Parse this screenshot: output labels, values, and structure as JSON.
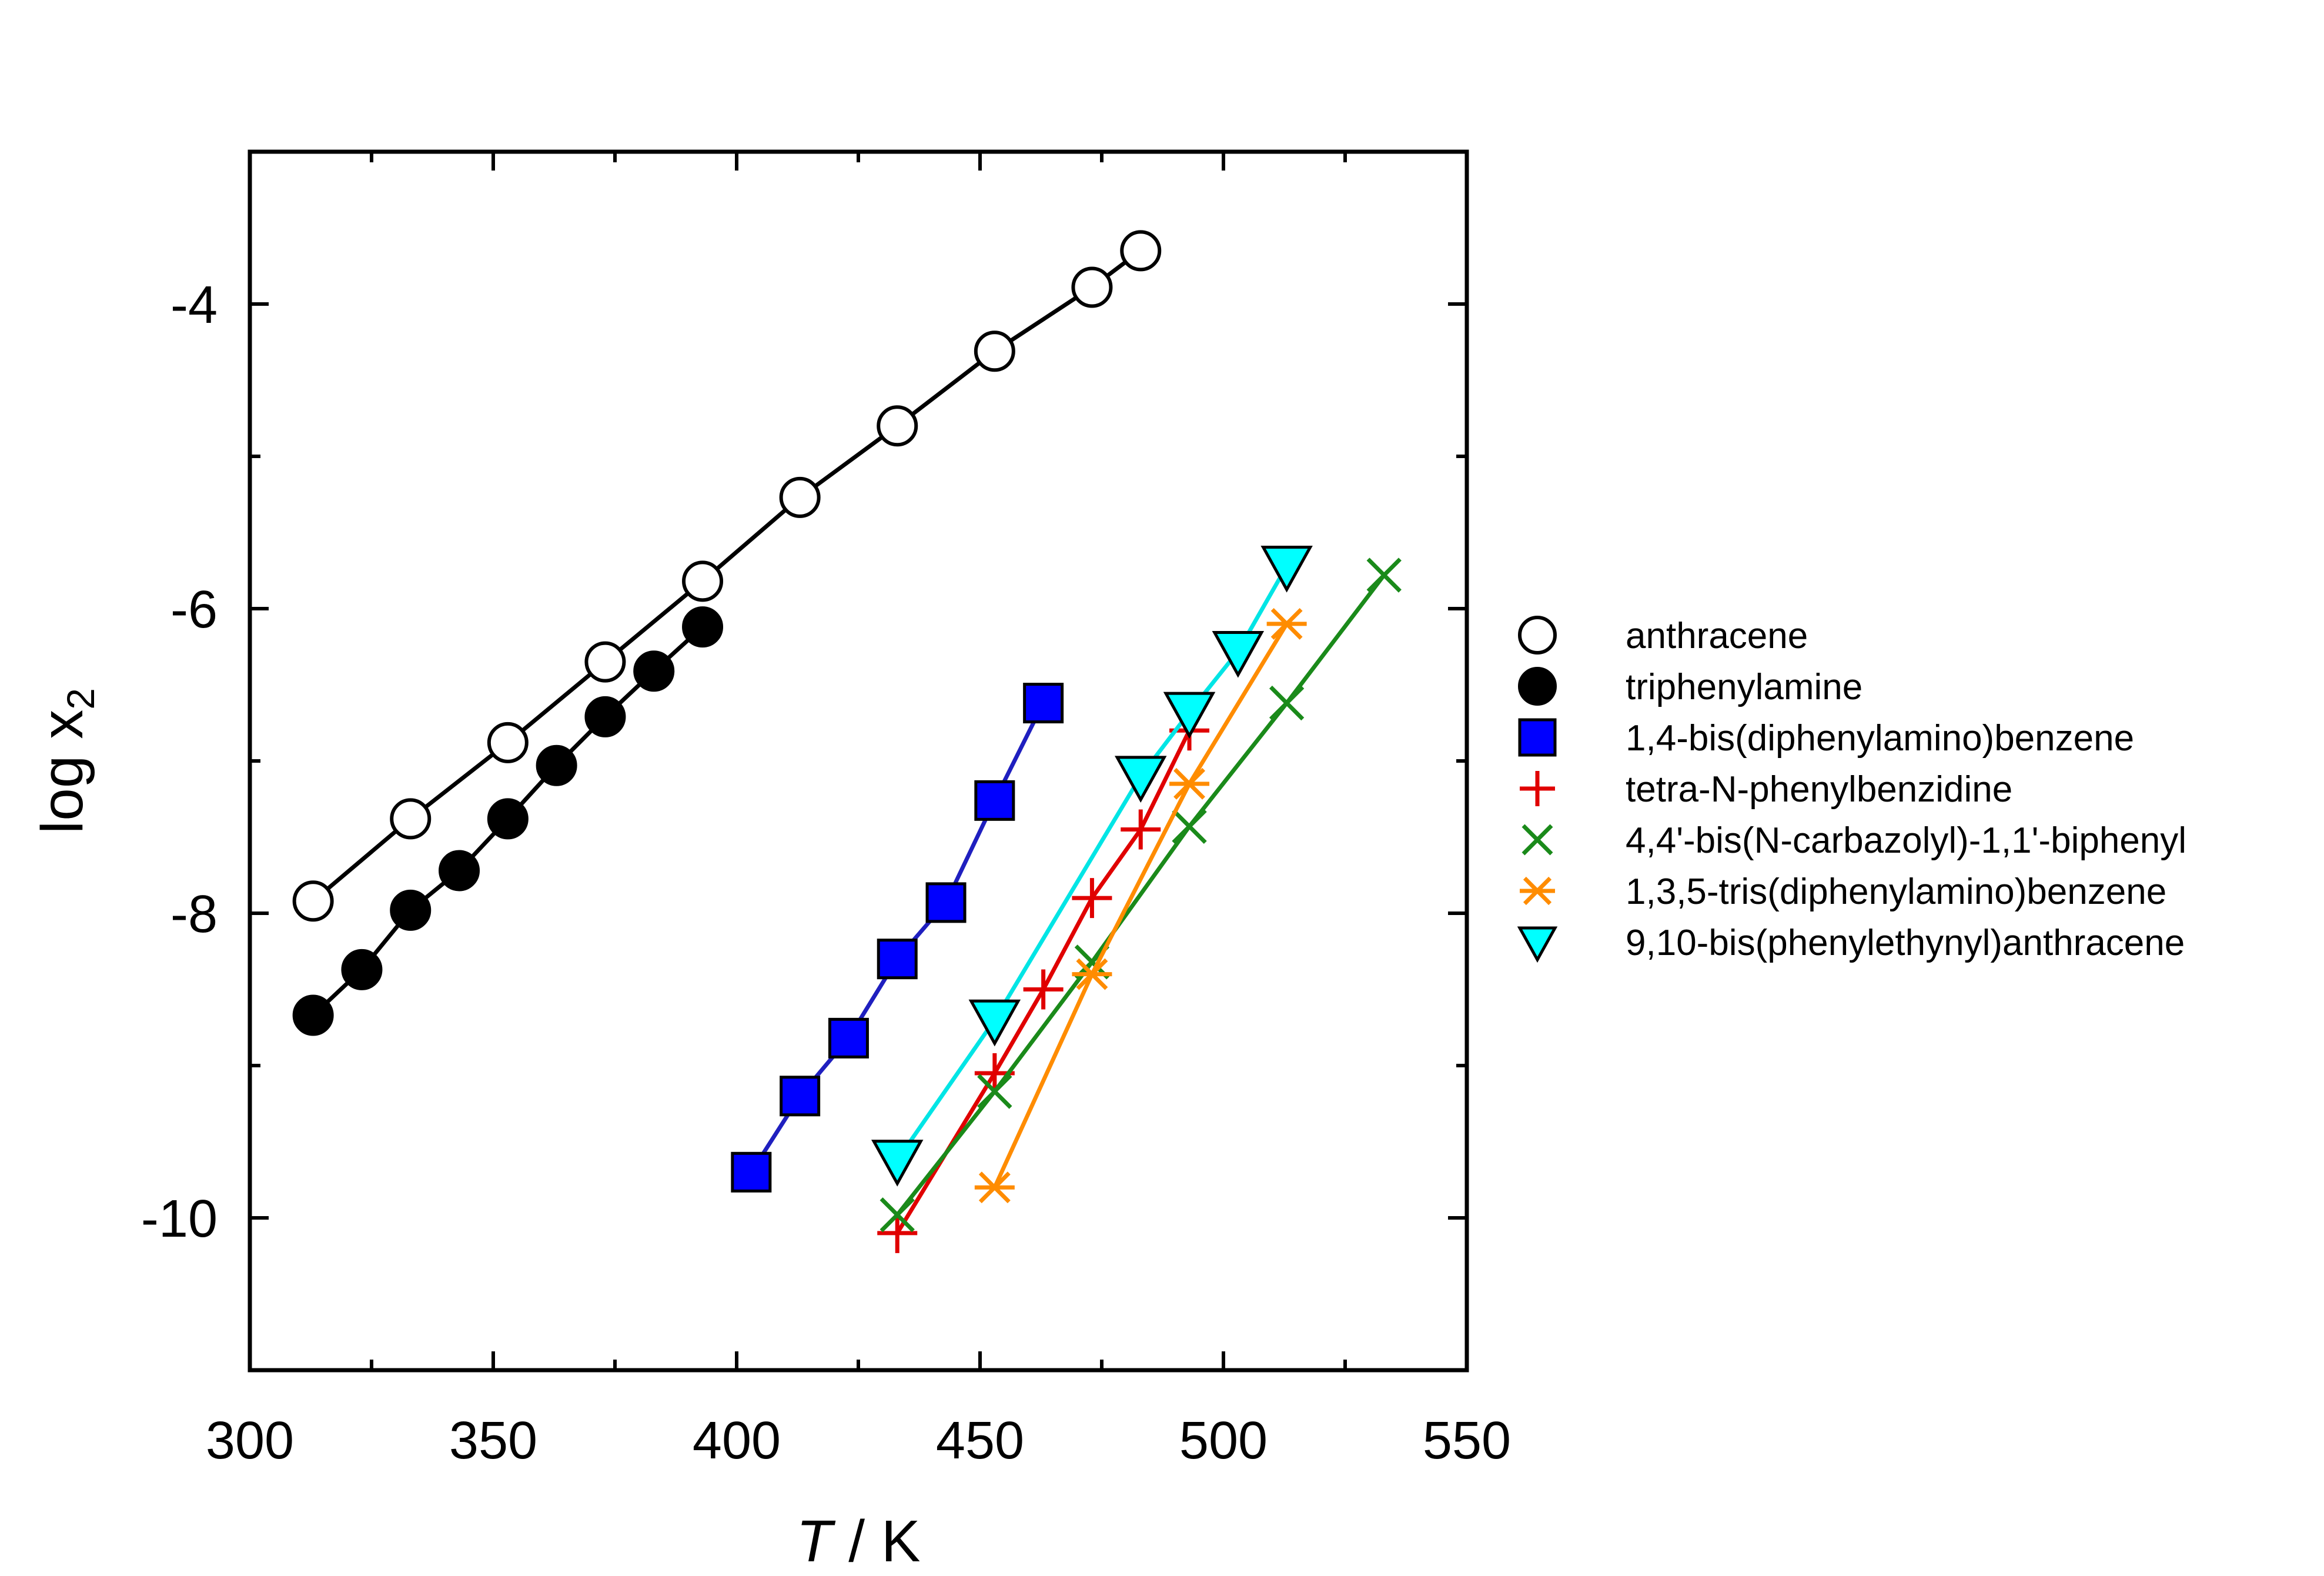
{
  "chart_data": {
    "type": "scatter",
    "xlabel_var": "T",
    "xlabel_unit": " / K",
    "ylabel_base": "log x",
    "ylabel_sub": "2",
    "xlim": [
      300,
      550
    ],
    "ylim": [
      -11,
      -3
    ],
    "xticks": [
      300,
      350,
      400,
      450,
      500,
      550
    ],
    "yticks": [
      -10,
      -8,
      -6,
      -4
    ],
    "legend_position": "right",
    "series": [
      {
        "name": "anthracene",
        "marker": "circle-open",
        "color": "#000000",
        "marker_color": "#ffffff",
        "x": [
          313,
          333,
          353,
          373,
          393,
          413,
          433,
          453,
          473,
          483
        ],
        "y": [
          -7.92,
          -7.38,
          -6.88,
          -6.35,
          -5.82,
          -5.27,
          -4.8,
          -4.31,
          -3.89,
          -3.65
        ]
      },
      {
        "name": "triphenylamine",
        "marker": "circle-filled",
        "color": "#000000",
        "marker_color": "#000000",
        "x": [
          313,
          323,
          333,
          343,
          353,
          363,
          373,
          383,
          393
        ],
        "y": [
          -8.67,
          -8.37,
          -7.98,
          -7.72,
          -7.38,
          -7.03,
          -6.71,
          -6.41,
          -6.12
        ]
      },
      {
        "name": "1,4-bis(diphenylamino)benzene",
        "marker": "square",
        "color": "#1f1fbf",
        "marker_color": "#0000ff",
        "x": [
          403,
          413,
          423,
          433,
          443,
          453,
          463
        ],
        "y": [
          -9.7,
          -9.2,
          -8.82,
          -8.3,
          -7.93,
          -7.26,
          -6.62
        ]
      },
      {
        "name": "tetra-N-phenylbenzidine",
        "marker": "plus",
        "color": "#e00000",
        "marker_color": "#e00000",
        "x": [
          433,
          453,
          463,
          473,
          483,
          493
        ],
        "y": [
          -10.1,
          -9.05,
          -8.5,
          -7.9,
          -7.45,
          -6.8
        ]
      },
      {
        "name": "4,4'-bis(N-carbazolyl)-1,1'-biphenyl",
        "marker": "x",
        "color": "#1a8a1a",
        "marker_color": "#1a8a1a",
        "x": [
          433,
          453,
          473,
          493,
          513,
          533
        ],
        "y": [
          -9.98,
          -9.17,
          -8.32,
          -7.43,
          -6.62,
          -5.78
        ]
      },
      {
        "name": "1,3,5-tris(diphenylamino)benzene",
        "marker": "asterisk",
        "color": "#ff8c00",
        "marker_color": "#ff8c00",
        "x": [
          453,
          473,
          493,
          513
        ],
        "y": [
          -9.8,
          -8.4,
          -7.15,
          -6.1
        ]
      },
      {
        "name": "9,10-bis(phenylethynyl)anthracene",
        "marker": "triangle-down",
        "color": "#00e5e5",
        "marker_color": "#00ffff",
        "x": [
          433,
          453,
          483,
          493,
          503,
          513
        ],
        "y": [
          -9.62,
          -8.7,
          -7.1,
          -6.68,
          -6.28,
          -5.72
        ]
      }
    ]
  }
}
